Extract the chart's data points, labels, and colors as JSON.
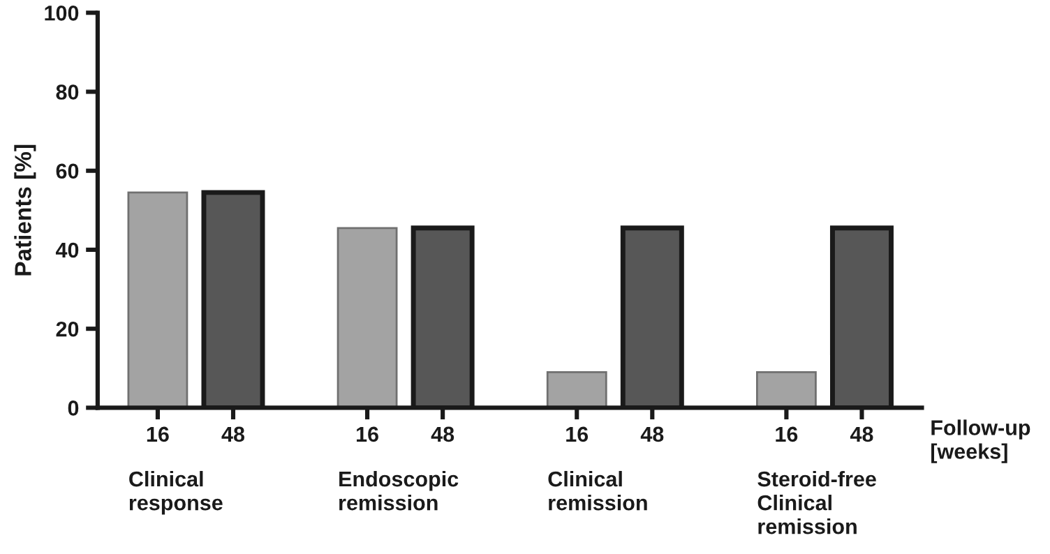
{
  "chart_data": {
    "type": "bar",
    "ylabel": "Patients [%]",
    "xlabel": "Follow-up\n[weeks]",
    "categories": [
      "16",
      "48",
      "16",
      "48",
      "16",
      "48",
      "16",
      "48"
    ],
    "values": [
      54.5,
      54.5,
      45.5,
      45.5,
      9,
      45.5,
      9,
      45.5
    ],
    "colors": [
      "#a3a3a3",
      "#575757",
      "#a3a3a3",
      "#575757",
      "#a3a3a3",
      "#575757",
      "#a3a3a3",
      "#575757"
    ],
    "annotations": [
      "Clinical\nresponse",
      "Endoscopic\nremission",
      "Clinical\nremission",
      "Steroid-free\nClinical\nremission"
    ],
    "ylim": [
      0,
      100
    ],
    "yticks": [
      0,
      20,
      40,
      60,
      80,
      100
    ],
    "grid": false,
    "legend": false
  }
}
